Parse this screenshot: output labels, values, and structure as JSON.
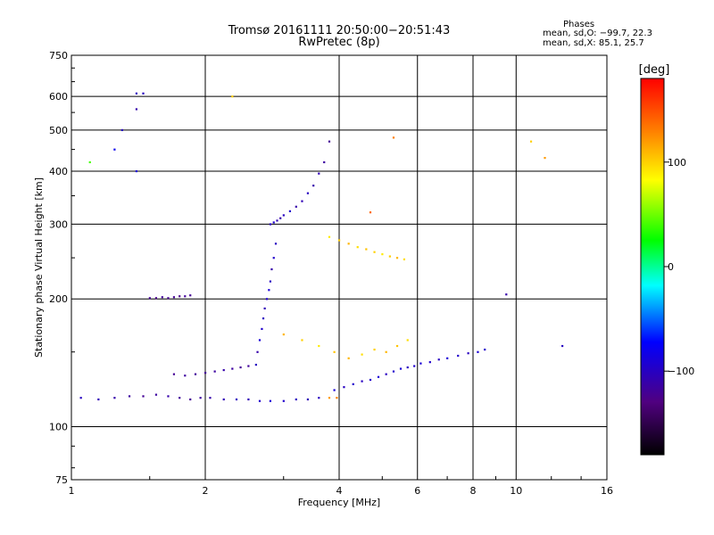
{
  "chart_data": {
    "type": "scatter",
    "title": "Tromsø 20161111 20:50:00−20:51:43",
    "subtitle": "RwPretec (8p)",
    "stats": {
      "heading": "Phases",
      "o_line": "mean, sd,O: −99.7, 22.3",
      "x_line": "mean, sd,X:  85.1, 25.7"
    },
    "xlabel": "Frequency [MHz]",
    "ylabel": "Stationary phase Virtual Height [km]",
    "x_scale": "log",
    "y_scale": "log",
    "xlim": [
      1,
      16
    ],
    "ylim": [
      75,
      750
    ],
    "x_ticks": [
      1,
      2,
      4,
      6,
      8,
      10,
      16
    ],
    "x_tick_labels": [
      "1",
      "2",
      "4",
      "6",
      "8",
      "10",
      "16"
    ],
    "y_ticks": [
      75,
      100,
      200,
      300,
      400,
      500,
      600,
      750
    ],
    "y_tick_labels": [
      "75",
      "100",
      "200",
      "300",
      "400",
      "500",
      "600",
      "750"
    ],
    "grid": true,
    "colorbar": {
      "label": "[deg]",
      "range": [
        -180,
        180
      ],
      "ticks": [
        100,
        0,
        -100
      ],
      "tick_labels": [
        "100",
        "0",
        "−100"
      ],
      "colormap": "rainbow",
      "colors": [
        "#000000",
        "#500080",
        "#0000ff",
        "#00ffff",
        "#00ff00",
        "#ffff00",
        "#ff8000",
        "#ff0000"
      ]
    },
    "series": [
      {
        "x": [
          1.05,
          1.15,
          1.25,
          1.35,
          1.45,
          1.55,
          1.65,
          1.75,
          1.85,
          1.95,
          2.05,
          2.2,
          2.35,
          2.5,
          2.65,
          2.8,
          3.0,
          3.2,
          3.4,
          3.6,
          3.8,
          3.95
        ],
        "y": [
          117,
          116,
          117,
          118,
          118,
          119,
          118,
          117,
          116,
          117,
          117,
          116,
          116,
          116,
          115,
          115,
          115,
          116,
          116,
          117,
          117,
          117
        ],
        "phase": [
          -100,
          -105,
          -110,
          -115,
          -120,
          -115,
          -110,
          -118,
          -120,
          -115,
          -110,
          -105,
          -100,
          -105,
          -95,
          -90,
          -95,
          -100,
          -105,
          -100,
          120,
          130
        ]
      },
      {
        "x": [
          3.9,
          4.1,
          4.3,
          4.5,
          4.7,
          4.9,
          5.1,
          5.3,
          5.5,
          5.7,
          5.9,
          6.1,
          6.4,
          6.7,
          7.0,
          7.4,
          7.8,
          8.2,
          8.5
        ],
        "y": [
          122,
          124,
          126,
          128,
          129,
          131,
          133,
          135,
          137,
          138,
          139,
          141,
          142,
          144,
          145,
          147,
          149,
          150,
          152
        ],
        "phase": [
          -90,
          -100,
          -95,
          -100,
          -95,
          -90,
          -100,
          -95,
          -90,
          -100,
          -95,
          -90,
          -95,
          -100,
          -90,
          -95,
          -100,
          -90,
          -95
        ]
      },
      {
        "x": [
          2.8,
          2.85,
          2.9,
          2.95,
          3.0,
          3.1,
          3.2,
          3.3,
          3.4,
          3.5,
          3.6,
          3.7,
          3.8
        ],
        "y": [
          300,
          303,
          306,
          310,
          315,
          322,
          330,
          340,
          355,
          370,
          395,
          420,
          470
        ],
        "phase": [
          -100,
          -95,
          -105,
          -110,
          -100,
          -95,
          -110,
          -105,
          -100,
          -110,
          -105,
          -115,
          -120
        ]
      },
      {
        "x": [
          2.6,
          2.62,
          2.65,
          2.68,
          2.7,
          2.72,
          2.75,
          2.78,
          2.8,
          2.82,
          2.85,
          2.88
        ],
        "y": [
          140,
          150,
          160,
          170,
          180,
          190,
          200,
          210,
          220,
          235,
          250,
          270
        ],
        "phase": [
          -100,
          -110,
          -90,
          -95,
          -100,
          -105,
          -95,
          -90,
          -100,
          -110,
          -95,
          -100
        ]
      },
      {
        "x": [
          3.8,
          4.0,
          4.2,
          4.4,
          4.6,
          4.8,
          5.0,
          5.2,
          5.4,
          5.6
        ],
        "y": [
          280,
          275,
          270,
          265,
          262,
          258,
          255,
          252,
          250,
          248
        ],
        "phase": [
          90,
          100,
          110,
          95,
          105,
          100,
          90,
          100,
          110,
          95
        ]
      },
      {
        "x": [
          1.5,
          1.55,
          1.6,
          1.65,
          1.7,
          1.75,
          1.8,
          1.85
        ],
        "y": [
          201,
          201,
          202,
          201,
          202,
          203,
          203,
          204
        ],
        "phase": [
          -120,
          -125,
          -118,
          -122,
          -120,
          -125,
          -118,
          -120
        ]
      },
      {
        "x": [
          1.7,
          1.8,
          1.9,
          2.0,
          2.1,
          2.2,
          2.3,
          2.4,
          2.5
        ],
        "y": [
          133,
          132,
          133,
          134,
          135,
          136,
          137,
          138,
          139
        ],
        "phase": [
          -120,
          -115,
          -118,
          -120,
          -115,
          -110,
          -115,
          -120,
          -118
        ]
      },
      {
        "x": [
          3.0,
          3.3,
          3.6,
          3.9,
          4.2,
          4.5,
          4.8,
          5.1,
          5.4,
          5.7
        ],
        "y": [
          165,
          160,
          155,
          150,
          145,
          148,
          152,
          150,
          155,
          160
        ],
        "phase": [
          110,
          100,
          90,
          105,
          110,
          95,
          100,
          110,
          105,
          95
        ]
      },
      {
        "x": [
          1.3,
          1.4,
          1.4,
          1.45,
          1.4,
          1.1,
          1.25,
          2.3,
          4.7,
          5.3,
          10.8,
          11.6,
          9.5,
          12.7
        ],
        "y": [
          500,
          610,
          560,
          610,
          400,
          420,
          450,
          600,
          320,
          480,
          470,
          430,
          205,
          155
        ],
        "phase": [
          -100,
          -100,
          -110,
          -100,
          -90,
          40,
          -80,
          100,
          140,
          130,
          100,
          120,
          -110,
          -100
        ]
      }
    ]
  }
}
